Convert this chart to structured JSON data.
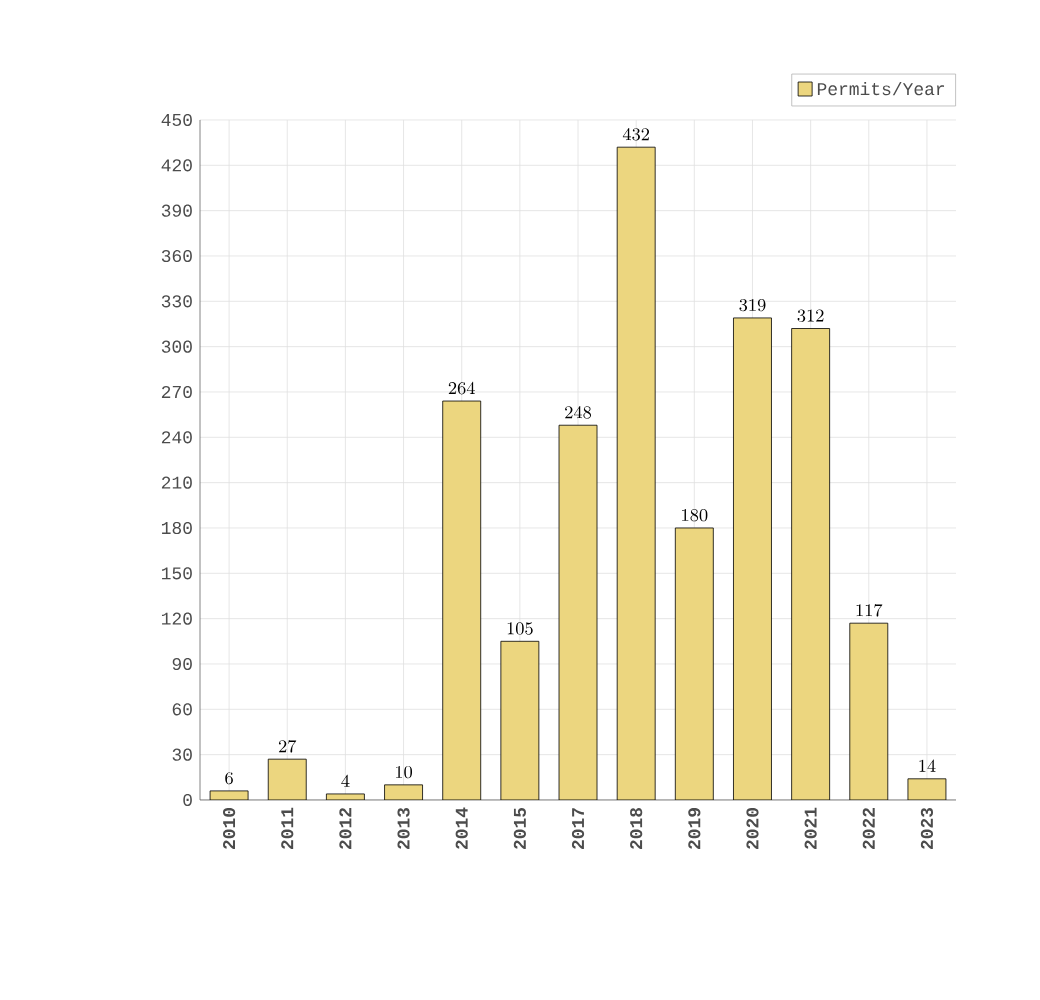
{
  "chart_data": {
    "type": "bar",
    "categories": [
      "2010",
      "2011",
      "2012",
      "2013",
      "2014",
      "2015",
      "2017",
      "2018",
      "2019",
      "2020",
      "2021",
      "2022",
      "2023"
    ],
    "series": [
      {
        "name": "Permits/Year",
        "color": "#ecd67f",
        "values": [
          6,
          27,
          4,
          10,
          264,
          105,
          248,
          432,
          180,
          319,
          312,
          117,
          14
        ]
      }
    ],
    "ylim": [
      0,
      450
    ],
    "yticks": [
      0,
      30,
      60,
      90,
      120,
      150,
      180,
      210,
      240,
      270,
      300,
      330,
      360,
      390,
      420,
      450
    ],
    "grid": true,
    "legend": "top right",
    "data_labels": true
  }
}
